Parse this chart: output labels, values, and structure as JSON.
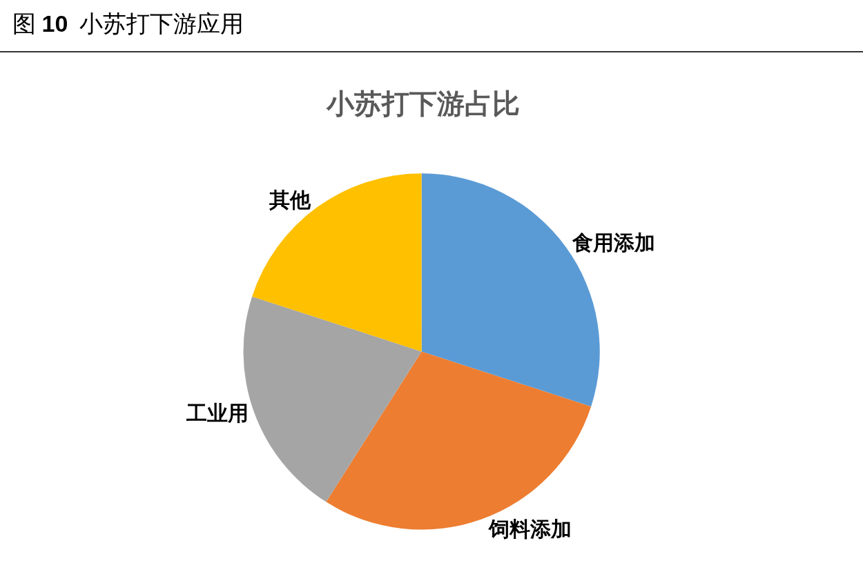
{
  "chart_data": {
    "type": "pie",
    "title": "小苏打下游占比",
    "annotations": [
      "图 10  小苏打下游应用"
    ],
    "categories": [
      "食用添加",
      "饲料添加",
      "工业用",
      "其他"
    ],
    "values": [
      30,
      29,
      21,
      20
    ],
    "colors": [
      "#5b9bd5",
      "#ed7d31",
      "#a5a5a5",
      "#ffc000"
    ]
  }
}
